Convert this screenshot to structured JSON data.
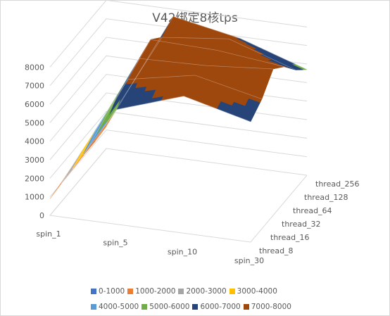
{
  "chart_data": {
    "type": "surface",
    "title": "V42绑定8核tps",
    "x_categories": [
      "spin_1",
      "spin_5",
      "spin_10",
      "spin_30"
    ],
    "y_categories": [
      "thread_8",
      "thread_16",
      "thread_32",
      "thread_64",
      "thread_128",
      "thread_256"
    ],
    "z_ticks": [
      0,
      1000,
      2000,
      3000,
      4000,
      5000,
      6000,
      7000,
      8000
    ],
    "zlim": [
      0,
      9000
    ],
    "values": [
      [
        900,
        6200,
        7400,
        6500
      ],
      [
        1000,
        7100,
        7800,
        7000
      ],
      [
        1050,
        7500,
        7600,
        7900
      ],
      [
        1100,
        7800,
        7700,
        7300
      ],
      [
        1100,
        7200,
        7600,
        6400
      ],
      [
        1200,
        7600,
        6900,
        5700
      ]
    ],
    "legend": [
      {
        "label": "0-1000",
        "color": "#4472c4"
      },
      {
        "label": "1000-2000",
        "color": "#ed7d31"
      },
      {
        "label": "2000-3000",
        "color": "#a5a5a5"
      },
      {
        "label": "3000-4000",
        "color": "#ffc000"
      },
      {
        "label": "4000-5000",
        "color": "#5b9bd5"
      },
      {
        "label": "5000-6000",
        "color": "#70ad47"
      },
      {
        "label": "6000-7000",
        "color": "#264478"
      },
      {
        "label": "7000-8000",
        "color": "#9e480e"
      }
    ],
    "legend_position": "bottom",
    "grid": true
  }
}
